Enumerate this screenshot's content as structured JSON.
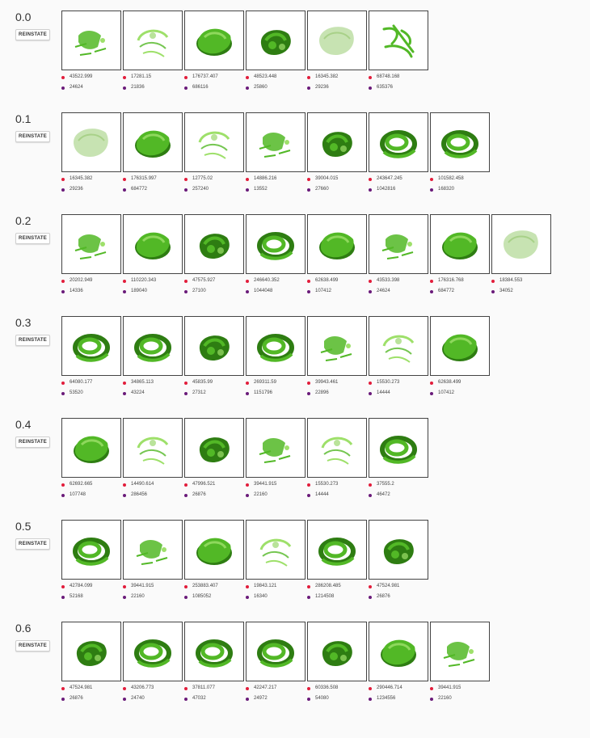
{
  "colors": {
    "metric1_dot": "#e21d3b",
    "metric2_dot": "#6a1b7a",
    "shape_fill": "#52b826",
    "shape_dark": "#2e7d12",
    "shape_light": "#9ee06a"
  },
  "generations": [
    {
      "label": "0.0",
      "button": "REINSTATE",
      "items": [
        {
          "m1": "43522.999",
          "m2": "24624",
          "shape": "sparse"
        },
        {
          "m1": "17281.15",
          "m2": "21836",
          "shape": "sparse-light"
        },
        {
          "m1": "176737.407",
          "m2": "686116",
          "shape": "solid-blob"
        },
        {
          "m1": "48523.448",
          "m2": "25860",
          "shape": "blob-dark"
        },
        {
          "m1": "16345.382",
          "m2": "29236",
          "shape": "pale-blob"
        },
        {
          "m1": "68748.168",
          "m2": "635376",
          "shape": "tubes"
        }
      ]
    },
    {
      "label": "0.1",
      "button": "REINSTATE",
      "items": [
        {
          "m1": "16345.382",
          "m2": "29236",
          "shape": "pale-blob"
        },
        {
          "m1": "176315.997",
          "m2": "684772",
          "shape": "solid-blob"
        },
        {
          "m1": "12775.02",
          "m2": "257240",
          "shape": "sparse-light"
        },
        {
          "m1": "14886.216",
          "m2": "13552",
          "shape": "sparse"
        },
        {
          "m1": "39004.015",
          "m2": "27660",
          "shape": "blob-dark"
        },
        {
          "m1": "243647.245",
          "m2": "1042816",
          "shape": "coil"
        },
        {
          "m1": "101582.458",
          "m2": "168320",
          "shape": "coil"
        }
      ]
    },
    {
      "label": "0.2",
      "button": "REINSTATE",
      "items": [
        {
          "m1": "20202.949",
          "m2": "14336",
          "shape": "sparse"
        },
        {
          "m1": "110220.343",
          "m2": "189040",
          "shape": "solid-blob"
        },
        {
          "m1": "47575.927",
          "m2": "27100",
          "shape": "blob-dark"
        },
        {
          "m1": "246640.352",
          "m2": "1044048",
          "shape": "coil"
        },
        {
          "m1": "62638.499",
          "m2": "107412",
          "shape": "solid-blob"
        },
        {
          "m1": "43533.398",
          "m2": "24624",
          "shape": "sparse"
        },
        {
          "m1": "176316.768",
          "m2": "684772",
          "shape": "solid-blob"
        },
        {
          "m1": "18384.553",
          "m2": "34052",
          "shape": "pale-blob"
        }
      ]
    },
    {
      "label": "0.3",
      "button": "REINSTATE",
      "items": [
        {
          "m1": "64080.177",
          "m2": "53520",
          "shape": "coil"
        },
        {
          "m1": "34865.113",
          "m2": "43224",
          "shape": "coil"
        },
        {
          "m1": "45835.99",
          "m2": "27312",
          "shape": "blob-dark"
        },
        {
          "m1": "269311.59",
          "m2": "1151796",
          "shape": "coil"
        },
        {
          "m1": "39943.461",
          "m2": "22896",
          "shape": "sparse"
        },
        {
          "m1": "15530.273",
          "m2": "14444",
          "shape": "sparse-light"
        },
        {
          "m1": "62638.499",
          "m2": "107412",
          "shape": "solid-blob"
        }
      ]
    },
    {
      "label": "0.4",
      "button": "REINSTATE",
      "items": [
        {
          "m1": "62692.665",
          "m2": "107748",
          "shape": "solid-blob"
        },
        {
          "m1": "14490.614",
          "m2": "286456",
          "shape": "sparse-light"
        },
        {
          "m1": "47996.521",
          "m2": "26876",
          "shape": "blob-dark"
        },
        {
          "m1": "39441.915",
          "m2": "22160",
          "shape": "sparse"
        },
        {
          "m1": "15530.273",
          "m2": "14444",
          "shape": "sparse-light"
        },
        {
          "m1": "37555.2",
          "m2": "46472",
          "shape": "coil"
        }
      ]
    },
    {
      "label": "0.5",
      "button": "REINSTATE",
      "items": [
        {
          "m1": "42784.099",
          "m2": "52168",
          "shape": "coil"
        },
        {
          "m1": "39441.915",
          "m2": "22160",
          "shape": "sparse"
        },
        {
          "m1": "253883.407",
          "m2": "1085052",
          "shape": "solid-blob"
        },
        {
          "m1": "19843.121",
          "m2": "16340",
          "shape": "sparse-light"
        },
        {
          "m1": "286208.485",
          "m2": "1214508",
          "shape": "coil"
        },
        {
          "m1": "47524.981",
          "m2": "26876",
          "shape": "blob-dark"
        }
      ]
    },
    {
      "label": "0.6",
      "button": "REINSTATE",
      "items": [
        {
          "m1": "47524.981",
          "m2": "26876",
          "shape": "blob-dark"
        },
        {
          "m1": "43206.773",
          "m2": "24740",
          "shape": "coil"
        },
        {
          "m1": "37811.077",
          "m2": "47032",
          "shape": "coil"
        },
        {
          "m1": "42247.217",
          "m2": "24972",
          "shape": "coil"
        },
        {
          "m1": "60336.508",
          "m2": "54080",
          "shape": "blob-dark"
        },
        {
          "m1": "290446.714",
          "m2": "1234556",
          "shape": "solid-blob"
        },
        {
          "m1": "39441.915",
          "m2": "22160",
          "shape": "sparse"
        }
      ]
    }
  ]
}
